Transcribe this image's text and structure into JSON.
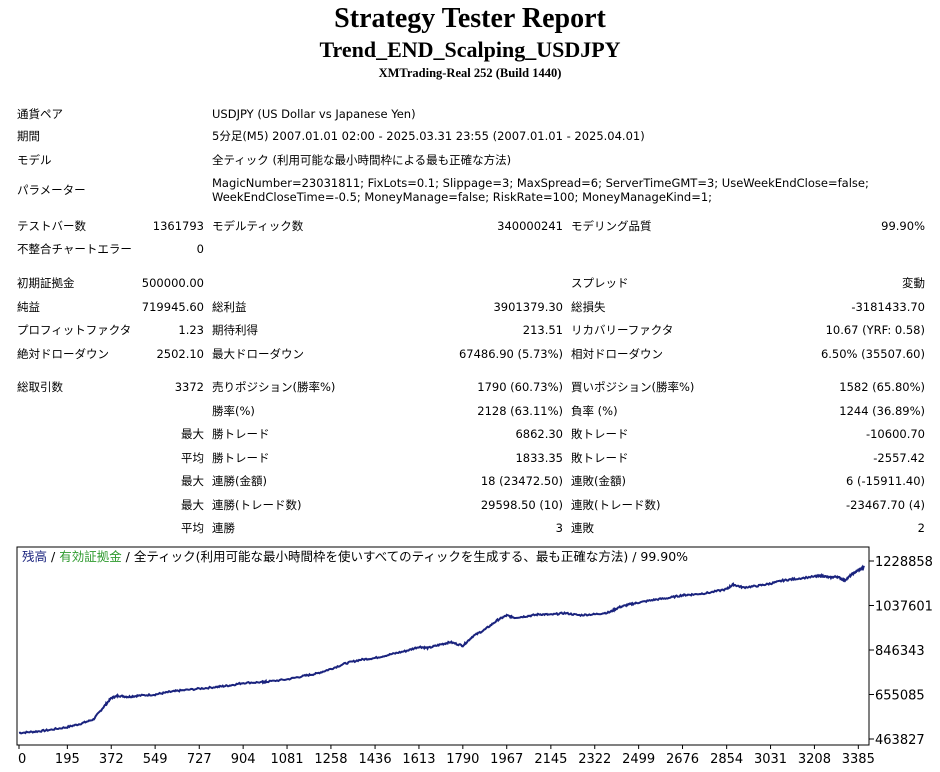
{
  "header": {
    "title": "Strategy Tester Report",
    "ea_name": "Trend_END_Scalping_USDJPY",
    "server": "XMTrading-Real 252 (Build 1440)"
  },
  "info": {
    "pair_label": "通貨ペア",
    "pair_value": "USDJPY (US Dollar vs Japanese Yen)",
    "period_label": "期間",
    "period_value": "5分足(M5) 2007.01.01 02:00 - 2025.03.31 23:55 (2007.01.01 - 2025.04.01)",
    "model_label": "モデル",
    "model_value": "全ティック (利用可能な最小時間枠による最も正確な方法)",
    "params_label": "パラメーター",
    "params_line1": "MagicNumber=23031811; FixLots=0.1; Slippage=3; MaxSpread=6; ServerTimeGMT=3; UseWeekEndClose=false;",
    "params_line2": "WeekEndCloseTime=-0.5; MoneyManage=false; RiskRate=100; MoneyManageKind=1;"
  },
  "stats": {
    "test_bars_label": "テストバー数",
    "test_bars": "1361793",
    "model_ticks_label": "モデルティック数",
    "model_ticks": "340000241",
    "modeling_quality_label": "モデリング品質",
    "modeling_quality": "99.90%",
    "mismatch_label": "不整合チャートエラー",
    "mismatch": "0",
    "initial_deposit_label": "初期証拠金",
    "initial_deposit": "500000.00",
    "spread_label": "スプレッド",
    "spread": "変動",
    "net_profit_label": "純益",
    "net_profit": "719945.60",
    "gross_profit_label": "総利益",
    "gross_profit": "3901379.30",
    "gross_loss_label": "総損失",
    "gross_loss": "-3181433.70",
    "profit_factor_label": "プロフィットファクタ",
    "profit_factor": "1.23",
    "expected_payoff_label": "期待利得",
    "expected_payoff": "213.51",
    "recovery_factor_label": "リカバリーファクタ",
    "recovery_factor": "10.67 (YRF: 0.58)",
    "abs_dd_label": "絶対ドローダウン",
    "abs_dd": "2502.10",
    "max_dd_label": "最大ドローダウン",
    "max_dd": "67486.90 (5.73%)",
    "rel_dd_label": "相対ドローダウン",
    "rel_dd": "6.50% (35507.60)",
    "total_trades_label": "総取引数",
    "total_trades": "3372",
    "short_label": "売りポジション(勝率%)",
    "short": "1790 (60.73%)",
    "long_label": "買いポジション(勝率%)",
    "long": "1582 (65.80%)",
    "win_rate_label": "勝率(%)",
    "win_rate": "2128 (63.11%)",
    "loss_rate_label": "負率 (%)",
    "loss_rate": "1244 (36.89%)",
    "max_label": "最大",
    "avg_label": "平均",
    "win_trade_label": "勝トレード",
    "loss_trade_label": "敗トレード",
    "largest_win": "6862.30",
    "largest_loss": "-10600.70",
    "avg_win": "1833.35",
    "avg_loss": "-2557.42",
    "consec_win_amt_label": "連勝(金額)",
    "consec_win_amt": "18 (23472.50)",
    "consec_loss_amt_label": "連敗(金額)",
    "consec_loss_amt": "6 (-15911.40)",
    "consec_win_trades_label": "連勝(トレード数)",
    "consec_win_trades": "29598.50 (10)",
    "consec_loss_trades_label": "連敗(トレード数)",
    "consec_loss_trades": "-23467.70 (4)",
    "avg_consec_win_label": "連勝",
    "avg_consec_win": "3",
    "avg_consec_loss_label": "連敗",
    "avg_consec_loss": "2"
  },
  "legend": {
    "balance": "残高",
    "sep1": " / ",
    "equity": "有効証拠金",
    "rest": " / 全ティック(利用可能な最小時間枠を使いすべてのティックを生成する、最も正確な方法) / 99.90%"
  },
  "chart_data": {
    "type": "line",
    "title": "",
    "xlabel": "",
    "ylabel": "",
    "x_ticks": [
      "0",
      "195",
      "372",
      "549",
      "727",
      "904",
      "1081",
      "1258",
      "1436",
      "1613",
      "1790",
      "1967",
      "2145",
      "2322",
      "2499",
      "2676",
      "2854",
      "3031",
      "3208",
      "3385"
    ],
    "y_ticks": [
      "1228858",
      "1037601",
      "846343",
      "655085",
      "463827"
    ],
    "xlim": [
      0,
      3420
    ],
    "ylim": [
      463827,
      1228858
    ],
    "grid": false,
    "colors": {
      "balance": "#1a237e",
      "equity": "#2e9a2e"
    },
    "series": [
      {
        "name": "残高",
        "x": [
          0,
          60,
          120,
          195,
          250,
          300,
          340,
          372,
          400,
          440,
          480,
          549,
          600,
          650,
          727,
          800,
          850,
          904,
          980,
          1000,
          1081,
          1150,
          1200,
          1258,
          1320,
          1380,
          1436,
          1500,
          1560,
          1613,
          1650,
          1700,
          1740,
          1790,
          1830,
          1880,
          1930,
          1967,
          2000,
          2050,
          2100,
          2145,
          2200,
          2260,
          2322,
          2380,
          2420,
          2460,
          2499,
          2560,
          2620,
          2676,
          2720,
          2780,
          2854,
          2880,
          2920,
          2980,
          3031,
          3080,
          3130,
          3208,
          3240,
          3270,
          3300,
          3330,
          3360,
          3385,
          3410
        ],
        "y": [
          490000,
          495000,
          502000,
          515000,
          530000,
          548000,
          600000,
          640000,
          650000,
          645000,
          650000,
          655000,
          665000,
          672000,
          680000,
          688000,
          694000,
          705000,
          708000,
          710000,
          720000,
          735000,
          745000,
          765000,
          790000,
          805000,
          812000,
          828000,
          842000,
          860000,
          855000,
          870000,
          880000,
          865000,
          905000,
          935000,
          975000,
          995000,
          985000,
          992000,
          1000000,
          998000,
          1005000,
          996000,
          1000000,
          1008000,
          1030000,
          1042000,
          1050000,
          1062000,
          1070000,
          1082000,
          1085000,
          1092000,
          1108000,
          1128000,
          1115000,
          1122000,
          1132000,
          1145000,
          1152000,
          1162000,
          1165000,
          1158000,
          1162000,
          1145000,
          1172000,
          1190000,
          1203000
        ]
      }
    ]
  }
}
